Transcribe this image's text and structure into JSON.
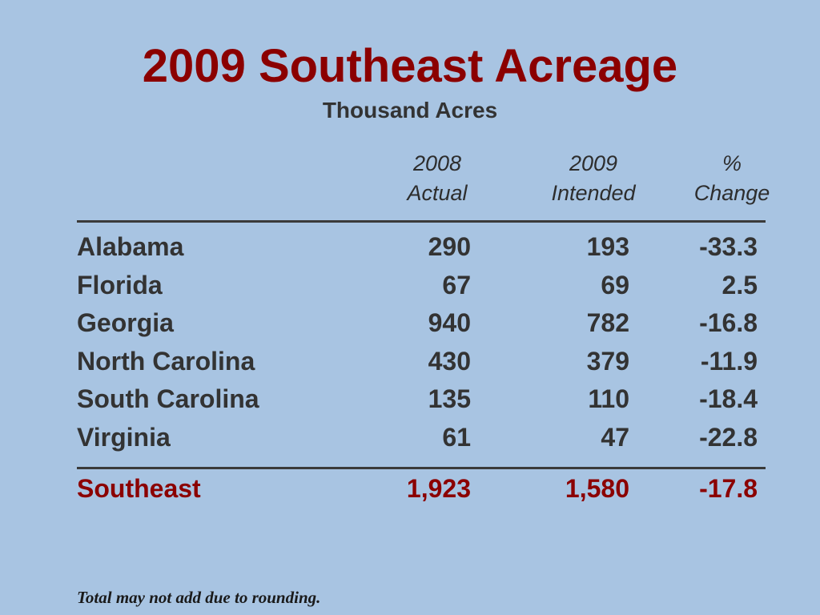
{
  "chart_data": {
    "type": "table",
    "title": "2009 Southeast Acreage",
    "subtitle": "Thousand Acres",
    "columns": [
      {
        "line1": "2008",
        "line2": "Actual"
      },
      {
        "line1": "2009",
        "line2": "Intended"
      },
      {
        "line1": "%",
        "line2": "Change"
      }
    ],
    "rows": [
      {
        "state": "Alabama",
        "actual_2008": "290",
        "intended_2009": "193",
        "pct_change": "-33.3"
      },
      {
        "state": "Florida",
        "actual_2008": "67",
        "intended_2009": "69",
        "pct_change": "2.5"
      },
      {
        "state": "Georgia",
        "actual_2008": "940",
        "intended_2009": "782",
        "pct_change": "-16.8"
      },
      {
        "state": "North Carolina",
        "actual_2008": "430",
        "intended_2009": "379",
        "pct_change": "-11.9"
      },
      {
        "state": "South Carolina",
        "actual_2008": "135",
        "intended_2009": "110",
        "pct_change": "-18.4"
      },
      {
        "state": "Virginia",
        "actual_2008": "61",
        "intended_2009": "47",
        "pct_change": "-22.8"
      }
    ],
    "total": {
      "state": "Southeast",
      "actual_2008": "1,923",
      "intended_2009": "1,580",
      "pct_change": "-17.8"
    },
    "footnote": "Total may not add due to rounding."
  },
  "colors": {
    "background": "#a8c4e2",
    "title": "#8b0000",
    "text": "#333333",
    "total": "#8b0000"
  }
}
